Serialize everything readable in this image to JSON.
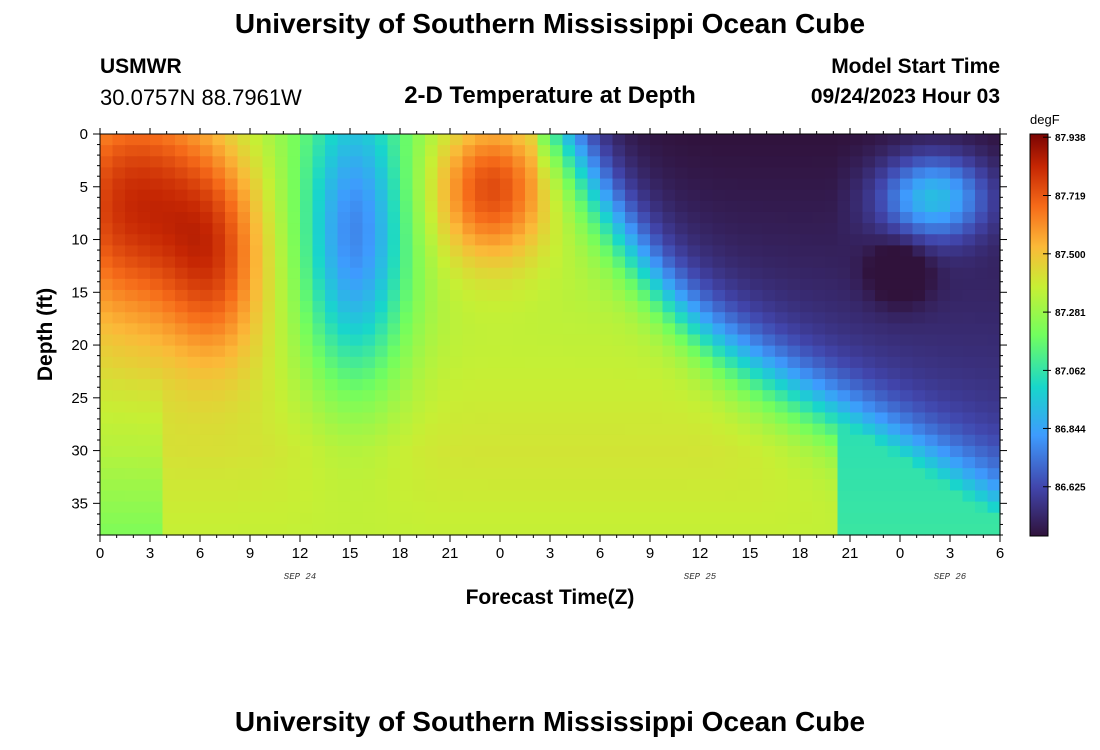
{
  "page": {
    "title_top": "University of Southern Mississippi Ocean Cube",
    "title_bottom": "University of Southern Mississippi Ocean Cube",
    "station_id": "USMWR",
    "station_coords": "30.0757N  88.7961W",
    "subtitle": "2-D Temperature at Depth",
    "model_start_label": "Model Start Time",
    "model_start_value": "09/24/2023 Hour 03"
  },
  "chart_data": {
    "type": "heatmap",
    "title": "2-D Temperature at Depth",
    "xlabel": "Forecast Time(Z)",
    "ylabel": "Depth (ft)",
    "x_range": [
      0,
      54
    ],
    "x_ticks": [
      0,
      3,
      6,
      9,
      12,
      15,
      18,
      21,
      24,
      27,
      30,
      33,
      36,
      39,
      42,
      45,
      48,
      51,
      54
    ],
    "x_tick_labels": [
      "0",
      "3",
      "6",
      "9",
      "12",
      "15",
      "18",
      "21",
      "0",
      "3",
      "6",
      "9",
      "12",
      "15",
      "18",
      "21",
      "0",
      "3",
      "6"
    ],
    "date_labels": [
      {
        "x": 12,
        "text": "SEP 24"
      },
      {
        "x": 36,
        "text": "SEP 25"
      },
      {
        "x": 51,
        "text": "SEP 26"
      }
    ],
    "y_range": [
      0,
      38
    ],
    "y_inverted": true,
    "y_ticks": [
      0,
      5,
      10,
      15,
      20,
      25,
      30,
      35
    ],
    "y_tick_labels": [
      "0",
      "5",
      "10",
      "15",
      "20",
      "25",
      "30",
      "35"
    ],
    "colorbar": {
      "unit": "degF",
      "range": [
        86.44,
        87.95
      ],
      "tick_values": [
        87.938,
        87.719,
        87.5,
        87.281,
        87.062,
        86.844,
        86.625
      ],
      "tick_labels": [
        "87.938",
        "87.719",
        "87.500",
        "87.281",
        "87.062",
        "86.844",
        "86.625"
      ]
    },
    "grid": false,
    "legend": "colorbar-right"
  }
}
